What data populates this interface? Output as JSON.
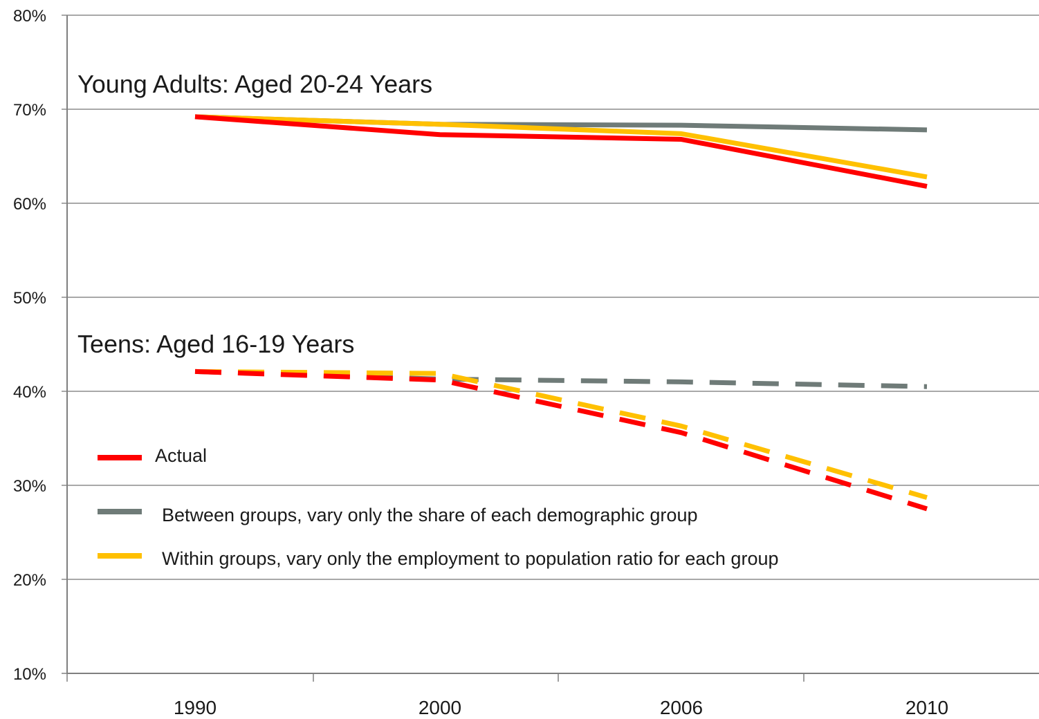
{
  "chart_data": {
    "type": "line",
    "title": "",
    "xlabel": "",
    "ylabel": "",
    "categories": [
      "1990",
      "2000",
      "2006",
      "2010"
    ],
    "ylim": [
      10,
      80
    ],
    "yticks": [
      "10%",
      "20%",
      "30%",
      "40%",
      "50%",
      "60%",
      "70%",
      "80%"
    ],
    "grid": true,
    "legend_position": "lower-left",
    "group_labels": [
      "Young Adults: Aged 20-24 Years",
      "Teens: Aged 16-19 Years"
    ],
    "legend": [
      {
        "label": "Actual",
        "color": "#ff0000"
      },
      {
        "label": "Between groups, vary only the share of each demographic group",
        "color": "#6f7b78"
      },
      {
        "label": "Within groups, vary only  the employment to population ratio for each group",
        "color": "#ffc000"
      }
    ],
    "groups": [
      {
        "label": "Young Adults: Aged 20-24 Years",
        "line_style": "solid",
        "series": [
          {
            "name": "Between groups, vary only the share of each demographic group",
            "color": "#6f7b78",
            "values": [
              69.2,
              68.4,
              68.3,
              67.8
            ]
          },
          {
            "name": "Within groups, vary only  the employment to population ratio for each group",
            "color": "#ffc000",
            "values": [
              69.2,
              68.4,
              67.4,
              62.8
            ]
          },
          {
            "name": "Actual",
            "color": "#ff0000",
            "values": [
              69.2,
              67.3,
              66.8,
              61.8
            ]
          }
        ]
      },
      {
        "label": "Teens: Aged 16-19 Years",
        "line_style": "dashed",
        "series": [
          {
            "name": "Between groups, vary only the share of each demographic group",
            "color": "#6f7b78",
            "values": [
              42.1,
              41.3,
              41.0,
              40.5
            ]
          },
          {
            "name": "Within groups, vary only  the employment to population ratio for each group",
            "color": "#ffc000",
            "values": [
              42.1,
              41.9,
              36.3,
              28.7
            ]
          },
          {
            "name": "Actual",
            "color": "#ff0000",
            "values": [
              42.1,
              41.2,
              35.6,
              27.5
            ]
          }
        ]
      }
    ]
  }
}
